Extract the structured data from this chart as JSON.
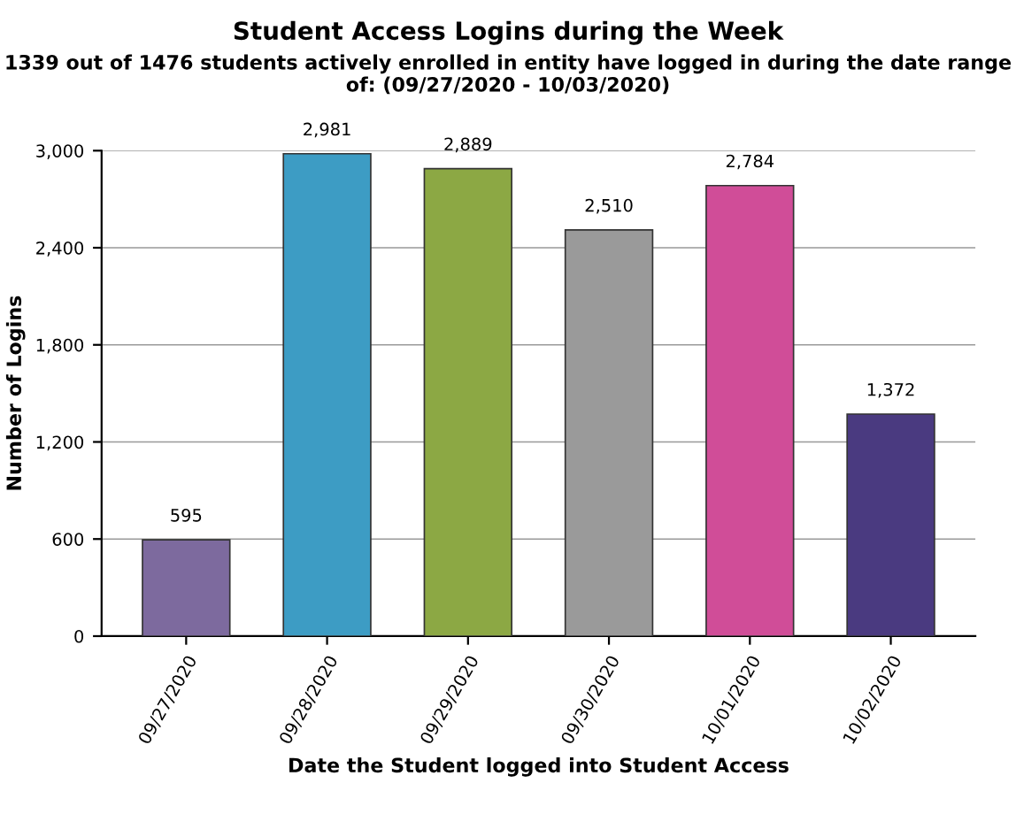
{
  "chart_data": {
    "type": "bar",
    "title": "Student Access Logins during the Week",
    "subtitle": "1339 out of 1476 students actively enrolled in entity have logged in during the date range of: (09/27/2020 - 10/03/2020)",
    "xlabel": "Date the Student logged into Student Access",
    "ylabel": "Number of Logins",
    "categories": [
      "09/27/2020",
      "09/28/2020",
      "09/29/2020",
      "09/30/2020",
      "10/01/2020",
      "10/02/2020"
    ],
    "values": [
      595,
      2981,
      2889,
      2510,
      2784,
      1372
    ],
    "value_labels": [
      "595",
      "2,981",
      "2,889",
      "2,510",
      "2,784",
      "1,372"
    ],
    "colors": [
      "#7d6a9e",
      "#3d9cc4",
      "#8ca844",
      "#9a9a9a",
      "#d04d98",
      "#4a3a80"
    ],
    "ylim": [
      0,
      3000
    ],
    "yticks": [
      {
        "value": 0,
        "label": "0"
      },
      {
        "value": 600,
        "label": "600"
      },
      {
        "value": 1200,
        "label": "1,200"
      },
      {
        "value": 1800,
        "label": "1,800"
      },
      {
        "value": 2400,
        "label": "2,400"
      },
      {
        "value": 3000,
        "label": "3,000"
      }
    ],
    "grid": "y",
    "legend": false
  }
}
